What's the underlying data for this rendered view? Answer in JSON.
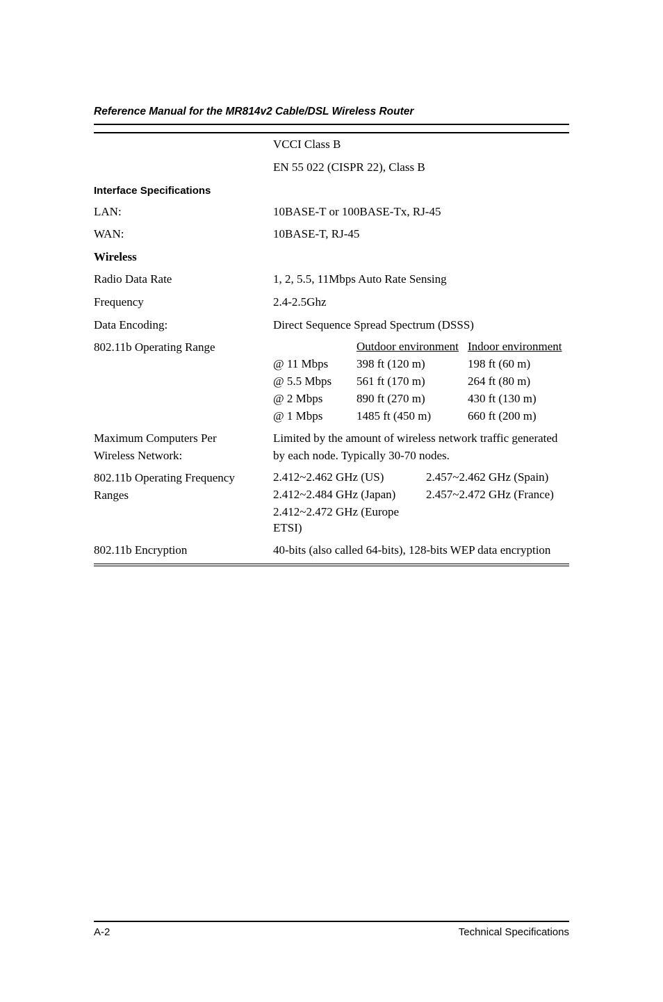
{
  "header": {
    "running_title": "Reference Manual for the MR814v2 Cable/DSL Wireless Router"
  },
  "emc_rows": [
    {
      "label": "",
      "value": "VCCI Class B"
    },
    {
      "label": "",
      "value": "EN 55 022 (CISPR 22), Class B"
    }
  ],
  "interface": {
    "heading": "Interface Specifications",
    "rows": [
      {
        "label": "LAN:",
        "value": "10BASE-T or 100BASE-Tx, RJ-45"
      },
      {
        "label": "WAN:",
        "value": "10BASE-T, RJ-45"
      }
    ]
  },
  "wireless": {
    "heading": "Wireless",
    "radio_data_rate": {
      "label": "Radio Data Rate",
      "value": "1, 2, 5.5, 11Mbps Auto Rate Sensing"
    },
    "frequency": {
      "label": "Frequency",
      "value": "2.4-2.5Ghz"
    },
    "data_encoding": {
      "label": "Data Encoding:",
      "value": "Direct Sequence Spread Spectrum (DSSS)"
    },
    "operating_range": {
      "label": "802.11b Operating Range",
      "col_headers": {
        "outdoor": "Outdoor environment",
        "indoor": "Indoor environment"
      },
      "rows": [
        {
          "rate": "@ 11 Mbps",
          "outdoor": "398 ft (120 m)",
          "indoor": "198 ft (60 m)"
        },
        {
          "rate": "@ 5.5 Mbps",
          "outdoor": "561 ft (170 m)",
          "indoor": "264 ft (80 m)"
        },
        {
          "rate": "@ 2 Mbps",
          "outdoor": "890 ft (270 m)",
          "indoor": "430 ft (130 m)"
        },
        {
          "rate": "@ 1 Mbps",
          "outdoor": "1485 ft (450 m)",
          "indoor": "660 ft (200 m)"
        }
      ]
    },
    "max_computers": {
      "label_line1": "Maximum Computers Per",
      "label_line2": "Wireless Network:",
      "value": "Limited by the amount of wireless network traffic generated by each node. Typically 30-70 nodes."
    },
    "freq_ranges": {
      "label_line1": "802.11b Operating Frequency",
      "label_line2": "Ranges",
      "cells": {
        "us": "2.412~2.462 GHz (US)",
        "spain": "2.457~2.462 GHz (Spain)",
        "japan": "2.412~2.484 GHz (Japan)",
        "france": "2.457~2.472 GHz (France)",
        "europe": "2.412~2.472 GHz (Europe ETSI)"
      }
    },
    "encryption": {
      "label": "802.11b Encryption",
      "value": "40-bits (also called 64-bits), 128-bits WEP data encryption"
    }
  },
  "footer": {
    "left": "A-2",
    "right": "Technical Specifications"
  }
}
